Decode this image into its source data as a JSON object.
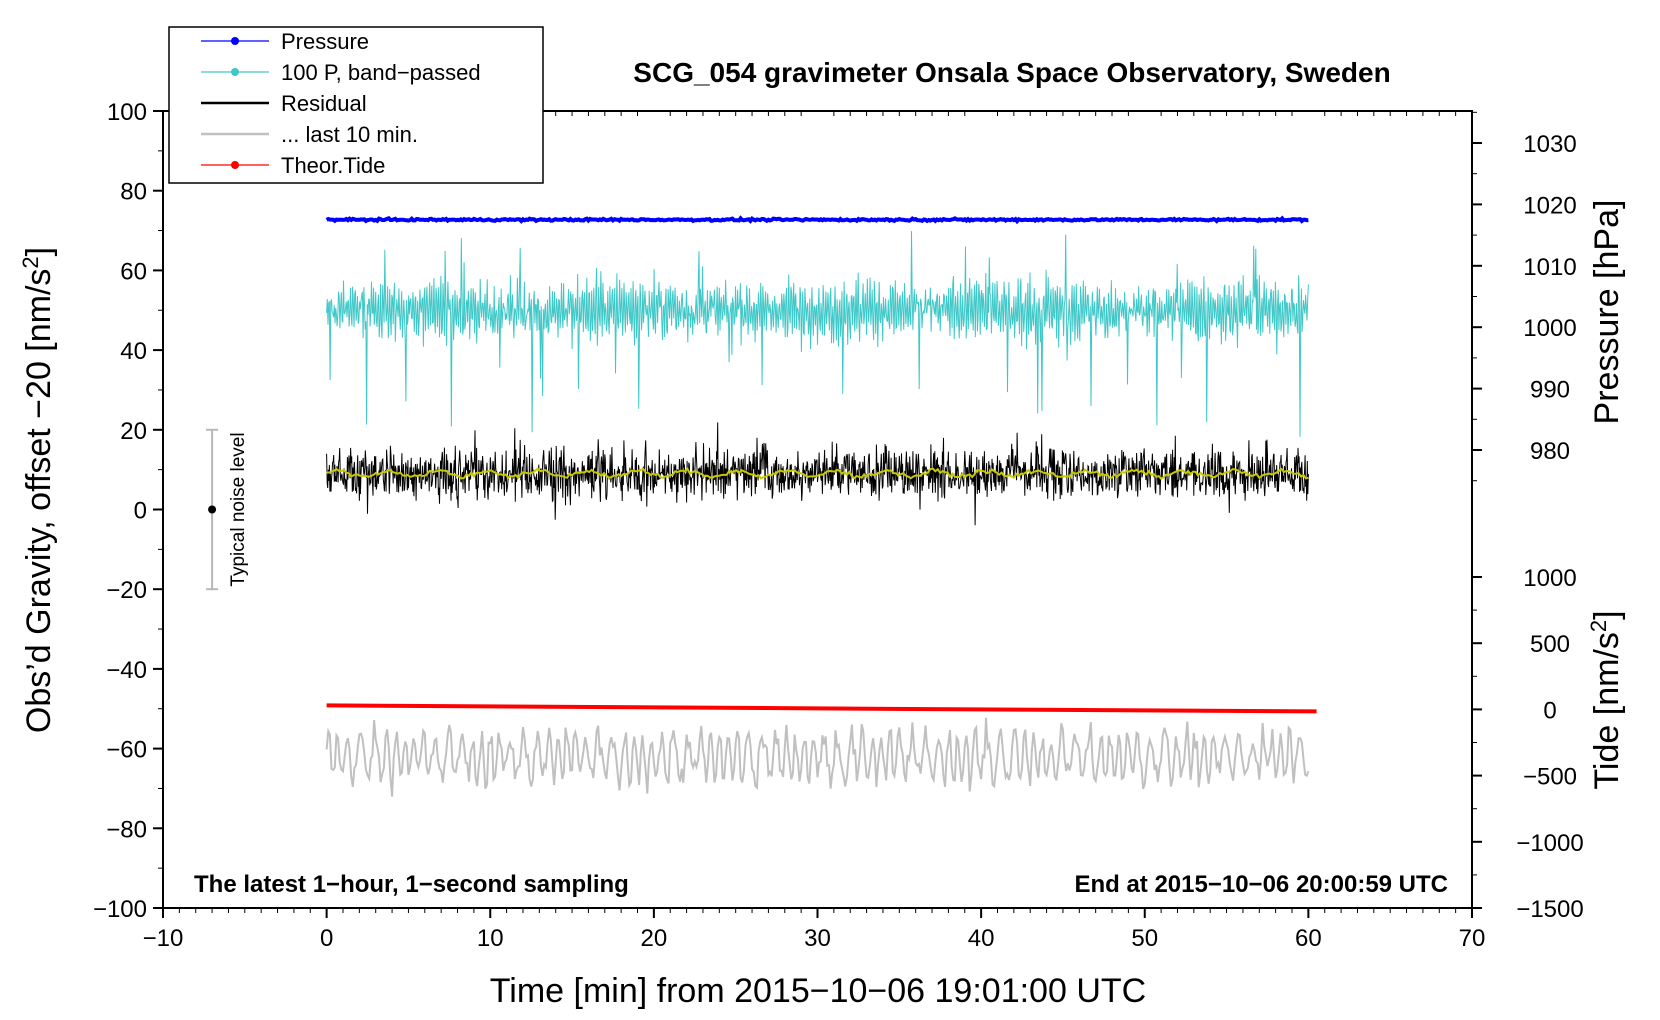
{
  "chart_data": {
    "type": "line",
    "title": "SCG_054 gravimeter Onsala Space Observatory, Sweden",
    "xlabel": "Time [min] from 2015−10−06 19:01:00 UTC",
    "ylabel_left": "Obs’d Gravity, offset −20 [nm/s",
    "ylabel_left_sup": "2",
    "ylabel_left_end": "]",
    "ylabel_right_pressure": "Pressure [hPa]",
    "ylabel_right_tide": "Tide [nm/s",
    "ylabel_right_tide_sup": "2",
    "ylabel_right_tide_end": "]",
    "xlim": [
      -10,
      70
    ],
    "ylim": [
      -100,
      100
    ],
    "x_ticks": [
      -10,
      0,
      10,
      20,
      30,
      40,
      50,
      60,
      70
    ],
    "x_tick_labels": [
      "−10",
      "0",
      "10",
      "20",
      "30",
      "40",
      "50",
      "60",
      "70"
    ],
    "y_ticks": [
      -100,
      -80,
      -60,
      -40,
      -20,
      0,
      20,
      40,
      60,
      80,
      100
    ],
    "y_tick_labels": [
      "−100",
      "−80",
      "−60",
      "−40",
      "−20",
      "0",
      "20",
      "40",
      "60",
      "80",
      "100"
    ],
    "pressure_axis": {
      "ticks": [
        980,
        990,
        1000,
        1010,
        1020,
        1030
      ],
      "tick_labels": [
        "980",
        "990",
        "1000",
        "1010",
        "1020",
        "1030"
      ],
      "lim": [
        966,
        1036
      ]
    },
    "tide_axis": {
      "ticks": [
        -1500,
        -1000,
        -500,
        0,
        500,
        1000
      ],
      "tick_labels": [
        "−1500",
        "−1000",
        "−500",
        "0",
        "500",
        "1000"
      ],
      "lim": [
        -1500,
        1500
      ]
    },
    "legend": [
      {
        "label": "Pressure",
        "color": "#0000ff",
        "marker": true
      },
      {
        "label": "100 P, band−passed",
        "color": "#40c8c8",
        "marker": true
      },
      {
        "label": "Residual",
        "color": "#000000",
        "marker": false
      },
      {
        "label": "... last 10 min.",
        "color": "#c0c0c0",
        "marker": false
      },
      {
        "label": "Theor.Tide",
        "color": "#ff0000",
        "marker": true
      }
    ],
    "legend_position": "top-left",
    "series": [
      {
        "name": "Pressure",
        "axis": "pressure",
        "x_range": [
          0,
          60
        ],
        "level_hPa": 1017.5,
        "color": "#0000ff"
      },
      {
        "name": "100 P, band−passed",
        "axis": "left",
        "x_range": [
          0,
          60
        ],
        "center": 50,
        "min": 17,
        "max": 71,
        "color": "#40c8c8"
      },
      {
        "name": "Residual",
        "axis": "left",
        "x_range": [
          0,
          60
        ],
        "center": 9,
        "min": -6,
        "max": 30,
        "color": "#000000"
      },
      {
        "name": "Residual smoothed",
        "axis": "left",
        "x_range": [
          0,
          60
        ],
        "center": 9,
        "color": "#c8c800"
      },
      {
        "name": "... last 10 min.",
        "axis": "left",
        "x_range": [
          0,
          60
        ],
        "center": -62,
        "min": -78,
        "max": -48,
        "color": "#c0c0c0"
      },
      {
        "name": "Theor.Tide",
        "axis": "tide",
        "x_range": [
          0,
          60.5
        ],
        "start": 30,
        "end": -15,
        "color": "#ff0000"
      }
    ],
    "noise_bar": {
      "x": -7,
      "center": 0,
      "low": -20,
      "high": 20,
      "label": "Typical noise level"
    },
    "bottom_left_note": "The latest 1−hour, 1−second sampling",
    "bottom_right_note": "End at 2015−10−06 20:00:59 UTC"
  }
}
